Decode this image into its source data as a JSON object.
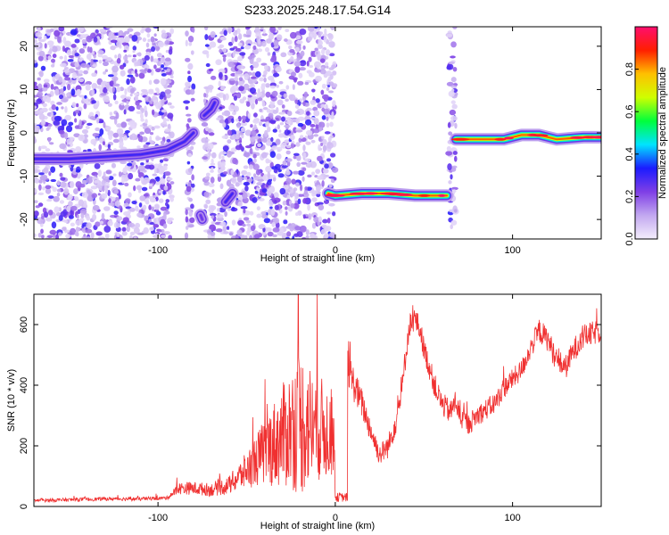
{
  "chart_data": [
    {
      "type": "heatmap",
      "title": "S233.2025.248.17.54.G14",
      "xlabel": "Height of straight line (km)",
      "ylabel": "Frequency (Hz)",
      "xlim": [
        -170,
        150
      ],
      "ylim": [
        -24.5,
        24.5
      ],
      "xticks": [
        -100,
        0,
        100
      ],
      "xtick_labels": [
        "-100",
        "0",
        "100"
      ],
      "yticks": [
        20,
        10,
        0,
        -10,
        -20
      ],
      "ytick_labels": [
        "20",
        "10",
        "0",
        "-10",
        "-20"
      ],
      "colorbar": {
        "label": "Normalized spectral amplitude",
        "range": [
          0,
          1
        ],
        "ticks": [
          0.0,
          0.2,
          0.4,
          0.6,
          0.8
        ],
        "tick_labels": [
          "0.0",
          "0.2",
          "0.4",
          "0.6",
          "0.8"
        ],
        "colors": [
          "#f4eefc",
          "#c2a8f0",
          "#7f3fe6",
          "#1b1bff",
          "#00e3ff",
          "#00ff3c",
          "#cfff00",
          "#ffc000",
          "#ff1f00",
          "#ff0e6e"
        ]
      },
      "ridge_segments": [
        {
          "x": [
            -175,
            -150,
            -130,
            -110,
            -95,
            -85,
            -80
          ],
          "f": [
            -6,
            -6,
            -5.5,
            -5,
            -4,
            -2,
            0
          ],
          "amplitude": 0.3
        },
        {
          "x": [
            -74,
            -70,
            -68
          ],
          "f": [
            4,
            5.5,
            7
          ],
          "amplitude": 0.3
        },
        {
          "x": [
            -76,
            -75
          ],
          "f": [
            -19,
            -20
          ],
          "amplitude": 0.25
        },
        {
          "x": [
            -62,
            -58
          ],
          "f": [
            -16,
            -14
          ],
          "amplitude": 0.3
        },
        {
          "x": [
            -4,
            0,
            15,
            30,
            45,
            60,
            63
          ],
          "f": [
            -14,
            -14.5,
            -14,
            -14,
            -14.5,
            -14.5,
            -14.5
          ],
          "amplitude": 0.85
        },
        {
          "x": [
            68,
            80,
            95,
            105,
            115,
            125,
            140,
            150
          ],
          "f": [
            -1.5,
            -1.5,
            -1.5,
            -0.5,
            -0.5,
            -1.5,
            -1,
            -1
          ],
          "amplitude": 0.85
        }
      ]
    },
    {
      "type": "line",
      "xlabel": "Height of straight line (km)",
      "ylabel": "SNR (10 * v/v)",
      "xlim": [
        -170,
        150
      ],
      "ylim": [
        0,
        700
      ],
      "xticks": [
        -100,
        0,
        100
      ],
      "xtick_labels": [
        "-100",
        "0",
        "100"
      ],
      "yticks": [
        0,
        200,
        400,
        600
      ],
      "ytick_labels": [
        "0",
        "200",
        "400",
        "600"
      ],
      "series": [
        {
          "name": "SNR",
          "color": "#f03030",
          "trend_x": [
            -170,
            -150,
            -130,
            -110,
            -95,
            -88,
            -80,
            -70,
            -60,
            -50,
            -40,
            -30,
            -25,
            -20,
            -15,
            -10,
            -5,
            -1,
            0,
            3,
            5,
            6.9,
            7,
            10,
            15,
            20,
            25,
            30,
            35,
            38,
            40,
            42,
            45,
            48,
            50,
            53,
            56,
            60,
            65,
            68,
            70,
            75,
            80,
            85,
            90,
            95,
            100,
            105,
            110,
            115,
            120,
            125,
            130,
            135,
            140,
            145,
            150
          ],
          "trend_y": [
            20,
            22,
            25,
            25,
            28,
            60,
            60,
            55,
            70,
            120,
            180,
            230,
            260,
            280,
            270,
            260,
            250,
            240,
            30,
            30,
            30,
            30,
            460,
            410,
            340,
            250,
            170,
            200,
            300,
            400,
            520,
            600,
            620,
            580,
            520,
            460,
            400,
            340,
            310,
            350,
            300,
            270,
            300,
            320,
            340,
            390,
            420,
            450,
            520,
            580,
            550,
            480,
            460,
            520,
            560,
            570,
            580
          ],
          "noise_amplitude": [
            6,
            6,
            6,
            6,
            6,
            20,
            22,
            22,
            30,
            60,
            110,
            170,
            200,
            250,
            210,
            180,
            160,
            140,
            15,
            15,
            15,
            15,
            60,
            60,
            50,
            40,
            35,
            40,
            45,
            45,
            45,
            40,
            40,
            40,
            40,
            40,
            40,
            40,
            40,
            40,
            40,
            35,
            35,
            35,
            35,
            35,
            35,
            35,
            35,
            40,
            40,
            40,
            40,
            40,
            40,
            40,
            40
          ]
        }
      ]
    }
  ]
}
